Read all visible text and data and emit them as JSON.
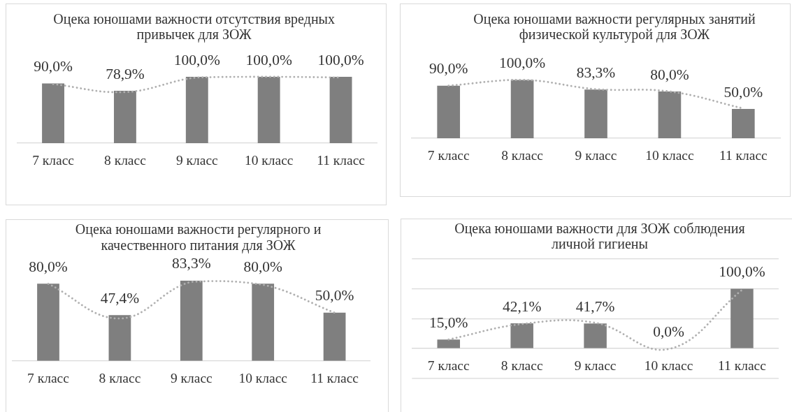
{
  "chart_data": [
    {
      "type": "bar",
      "title": "Оцека юношами важности отсутствия вредных привычек для ЗОЖ",
      "categories": [
        "7 класс",
        "8 класс",
        "9 класс",
        "10 класс",
        "11 класс"
      ],
      "series": [
        {
          "color": "#7f7f7f",
          "values": [
            90.0,
            78.9,
            100.0,
            100.0,
            100.0
          ],
          "value_labels": [
            "90,0%",
            "78,9%",
            "100,0%",
            "100,0%",
            "100,0%"
          ]
        },
        {
          "type": "line",
          "color": "#b0b0b0",
          "values": [
            89,
            77,
            99,
            100,
            99
          ]
        }
      ],
      "tick_labels": "x",
      "line_style": "dotted",
      "marker": "none"
    },
    {
      "type": "bar",
      "title": "Оцека юношами важности регулярных занятий физической культурой для ЗОЖ",
      "categories": [
        "7 класс",
        "8 класс",
        "9 класс",
        "10 класс",
        "11 класс"
      ],
      "series": [
        {
          "color": "#7f7f7f",
          "values": [
            90.0,
            100.0,
            83.3,
            80.0,
            50.0
          ],
          "value_labels": [
            "90,0%",
            "100,0%",
            "83,3%",
            "80,0%",
            "50,0%"
          ]
        },
        {
          "type": "line",
          "color": "#b0b0b0",
          "values": [
            90,
            100,
            84,
            80,
            51
          ]
        }
      ],
      "tick_labels": "x",
      "line_style": "dotted",
      "marker": "none"
    },
    {
      "type": "bar",
      "title": "Оцека юношами важности регулярного и качественного питания для ЗОЖ",
      "categories": [
        "7 класс",
        "8 класс",
        "9 класс",
        "10 класс",
        "11 класс"
      ],
      "series": [
        {
          "color": "#7f7f7f",
          "values": [
            80.0,
            47.4,
            83.3,
            80.0,
            50.0
          ],
          "value_labels": [
            "80,0%",
            "47,4%",
            "83,3%",
            "80,0%",
            "50,0%"
          ]
        },
        {
          "type": "line",
          "color": "#b0b0b0",
          "values": [
            80,
            44,
            82,
            79,
            50
          ]
        }
      ],
      "tick_labels": "x",
      "line_style": "dotted",
      "marker": "none"
    },
    {
      "type": "bar",
      "title": "Оцека юношами важности для ЗОЖ соблюдения личной гигиены",
      "categories": [
        "7 класс",
        "8 класс",
        "9 класс",
        "10 класс",
        "11 класс"
      ],
      "series": [
        {
          "color": "#7f7f7f",
          "values": [
            15.0,
            42.1,
            41.7,
            0.0,
            100.0
          ],
          "value_labels": [
            "15,0%",
            "42,1%",
            "41,7%",
            "0,0%",
            "100,0%"
          ]
        },
        {
          "type": "line",
          "color": "#b0b0b0",
          "values": [
            15,
            41,
            43,
            -1,
            98
          ]
        }
      ],
      "ylim": [
        -50,
        150
      ],
      "yticks": [
        {
          "value": 0,
          "label": null
        },
        {
          "value": 50,
          "label": null
        },
        {
          "value": 100,
          "label": null
        }
      ],
      "grid": "y",
      "tick_labels": "x",
      "line_style": "dotted",
      "marker": "none"
    }
  ]
}
